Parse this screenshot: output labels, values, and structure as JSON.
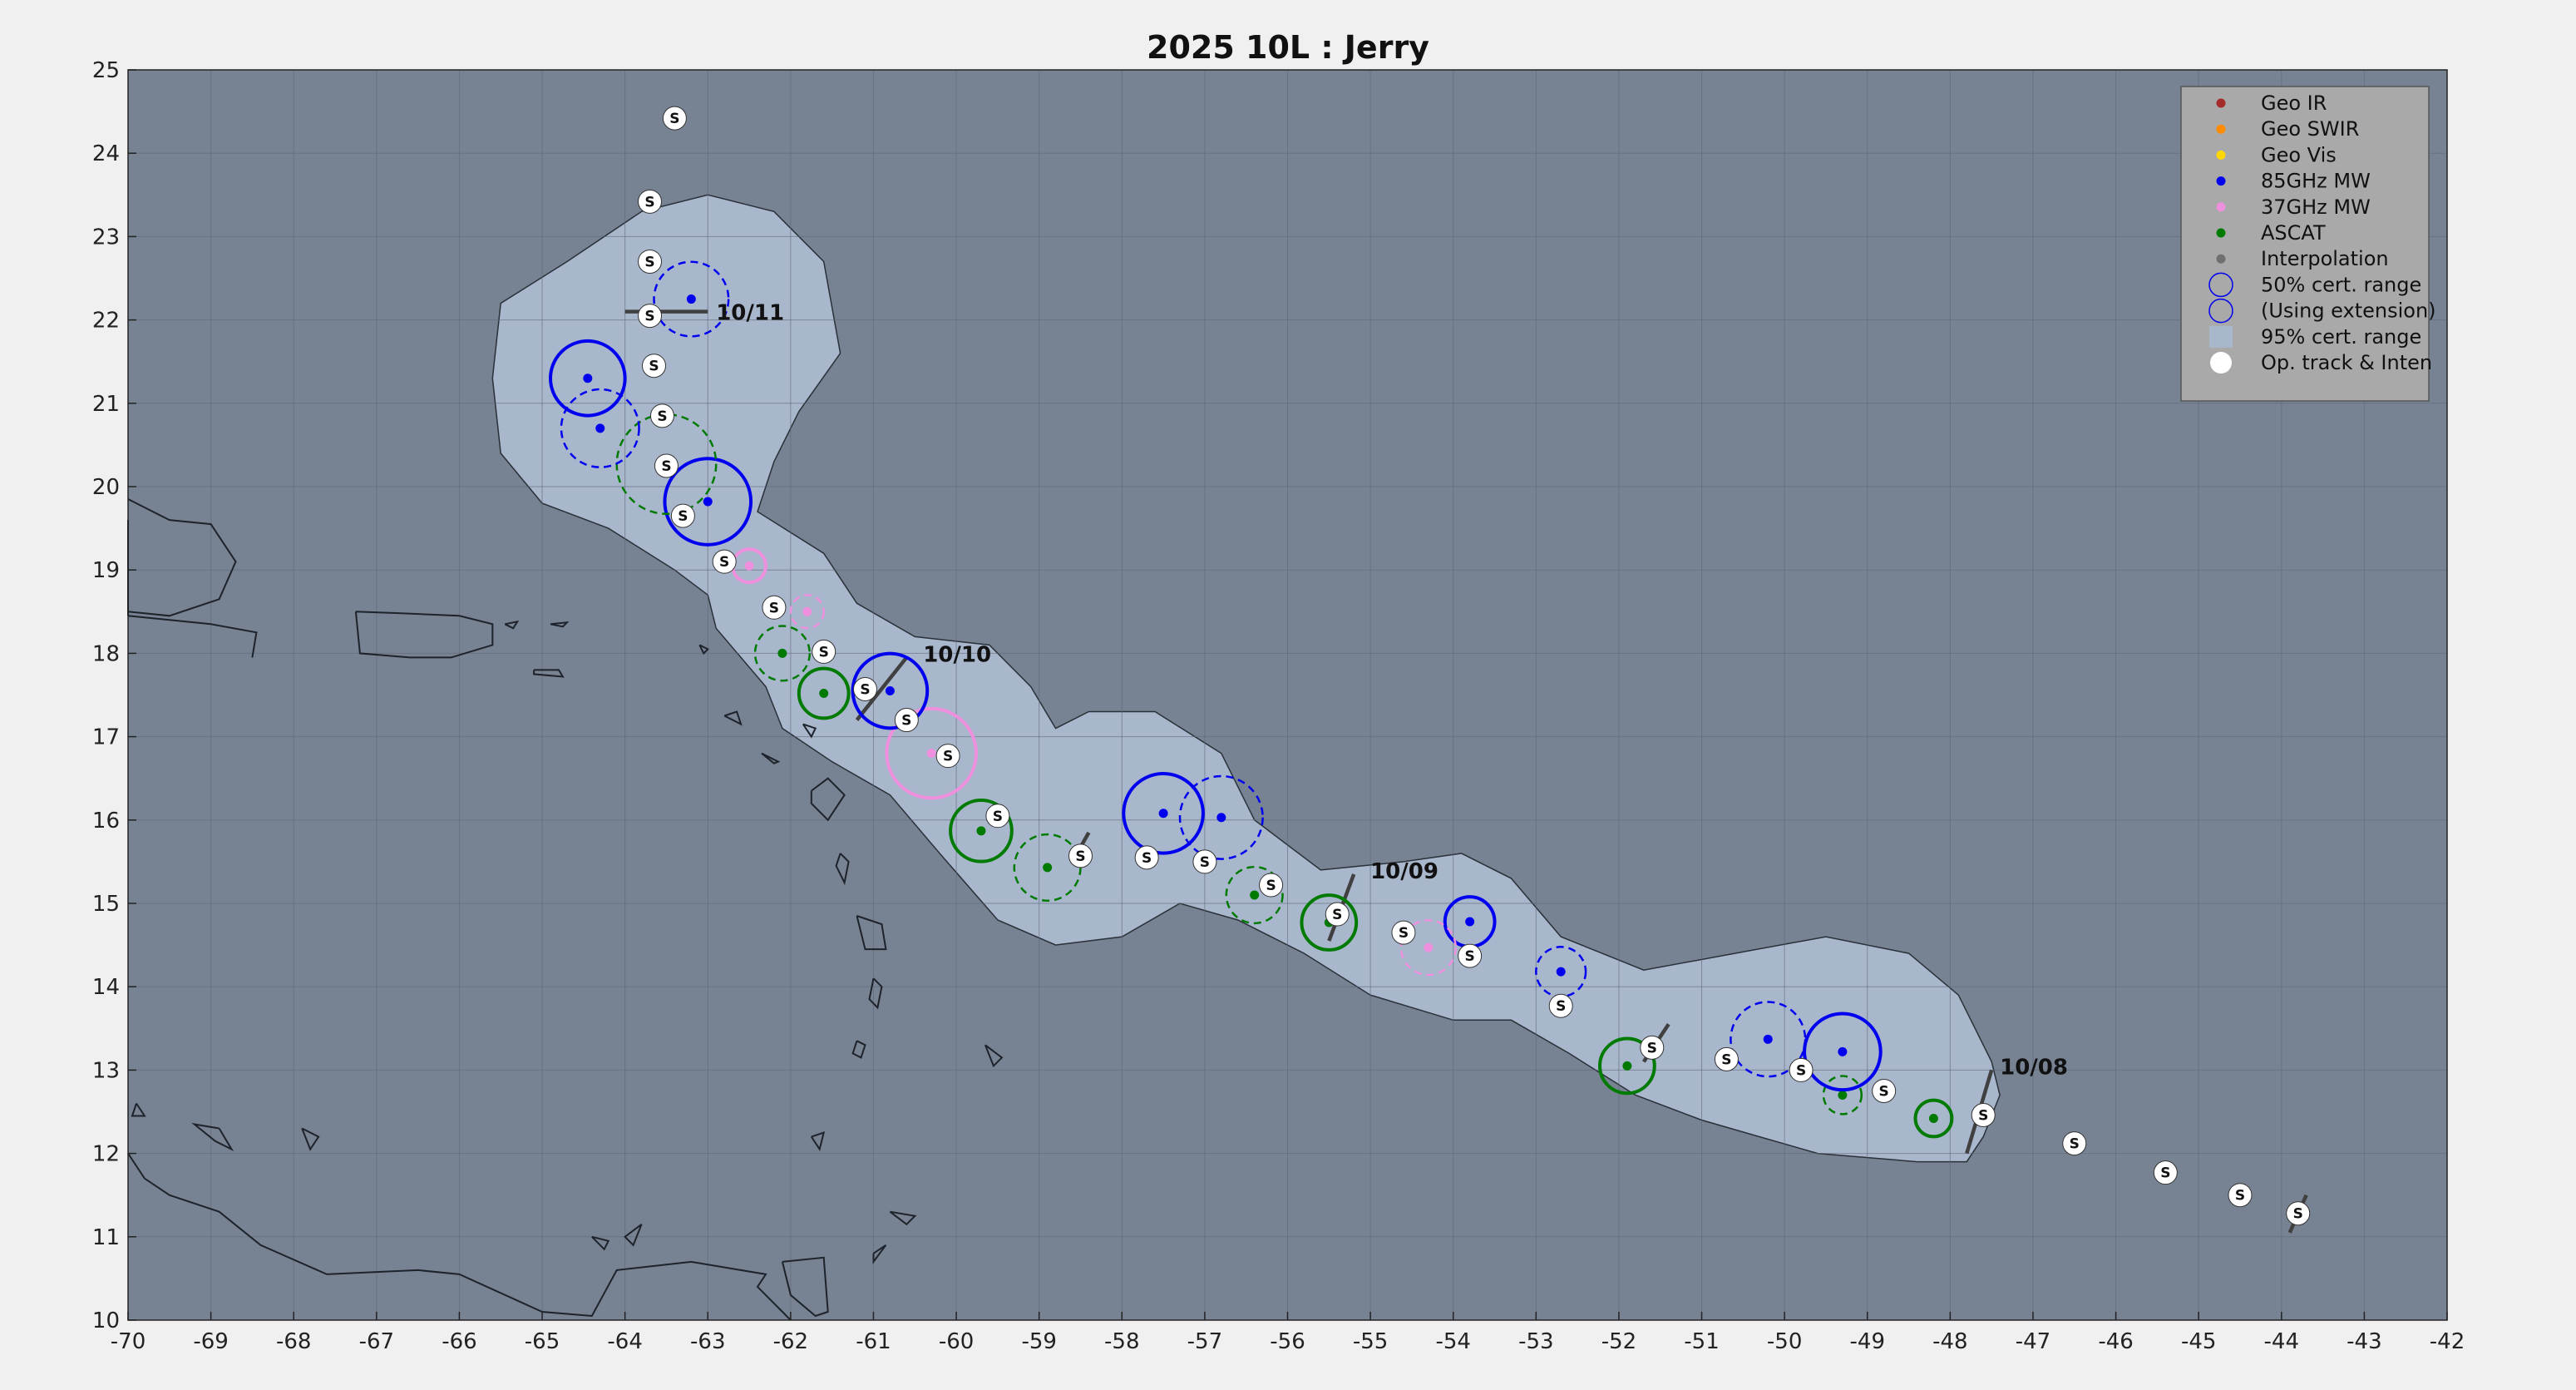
{
  "title": "2025  10L :  Jerry",
  "colors": {
    "plot_bg": "#778292",
    "cone": "#a9b7cd",
    "land_line": "#1e232b",
    "geo_ir": "#a52a2a",
    "geo_swir": "#ff8c00",
    "geo_vis": "#ffd700",
    "mw85": "#0000ee",
    "mw37": "#ee90dd",
    "ascat": "#007a00",
    "interp": "#707070",
    "oper": "#ffffff",
    "shear": "#404040",
    "legend_bg": "#a9a9a9"
  },
  "chart_data": {
    "type": "map",
    "xlim": [
      -70,
      -42
    ],
    "ylim": [
      10,
      25
    ],
    "grid": true,
    "x_ticks": [
      "-70",
      "-69",
      "-68",
      "-67",
      "-66",
      "-65",
      "-64",
      "-63",
      "-62",
      "-61",
      "-60",
      "-59",
      "-58",
      "-57",
      "-56",
      "-55",
      "-54",
      "-53",
      "-52",
      "-51",
      "-50",
      "-49",
      "-48",
      "-47",
      "-46",
      "-45",
      "-44",
      "-43",
      "-42"
    ],
    "y_ticks": [
      "10",
      "11",
      "12",
      "13",
      "14",
      "15",
      "16",
      "17",
      "18",
      "19",
      "20",
      "21",
      "22",
      "23",
      "24",
      "25"
    ],
    "legend": {
      "position": "top-right",
      "entries": [
        {
          "label": "Geo IR",
          "symbol": "dot",
          "color": "geo_ir"
        },
        {
          "label": "Geo SWIR",
          "symbol": "dot",
          "color": "geo_swir"
        },
        {
          "label": "Geo Vis",
          "symbol": "dot",
          "color": "geo_vis"
        },
        {
          "label": "85GHz MW",
          "symbol": "dot",
          "color": "mw85"
        },
        {
          "label": "37GHz MW",
          "symbol": "dot",
          "color": "mw37"
        },
        {
          "label": "ASCAT",
          "symbol": "dot",
          "color": "ascat"
        },
        {
          "label": "Interpolation",
          "symbol": "dot",
          "color": "interp"
        },
        {
          "label": "50% cert. range",
          "symbol": "circle",
          "color": "mw85"
        },
        {
          "label": "(Using extension)",
          "symbol": "circle",
          "color": "mw85"
        },
        {
          "label": "95% cert. range",
          "symbol": "rect",
          "color": "cone"
        },
        {
          "label": "Op. track & Inten",
          "symbol": "bigdot",
          "color": "oper"
        }
      ]
    },
    "cone_95": [
      [
        -47.6,
        12.2
      ],
      [
        -47.4,
        12.7
      ],
      [
        -47.5,
        13.1
      ],
      [
        -47.9,
        13.9
      ],
      [
        -48.5,
        14.4
      ],
      [
        -49.5,
        14.6
      ],
      [
        -50.6,
        14.4
      ],
      [
        -51.7,
        14.2
      ],
      [
        -52.7,
        14.6
      ],
      [
        -53.3,
        15.3
      ],
      [
        -53.9,
        15.6
      ],
      [
        -54.6,
        15.5
      ],
      [
        -55.6,
        15.4
      ],
      [
        -56.4,
        16.0
      ],
      [
        -56.8,
        16.8
      ],
      [
        -57.6,
        17.3
      ],
      [
        -58.4,
        17.3
      ],
      [
        -58.8,
        17.1
      ],
      [
        -59.1,
        17.6
      ],
      [
        -59.6,
        18.1
      ],
      [
        -60.5,
        18.2
      ],
      [
        -61.2,
        18.6
      ],
      [
        -61.6,
        19.2
      ],
      [
        -62.4,
        19.7
      ],
      [
        -62.2,
        20.3
      ],
      [
        -61.9,
        20.9
      ],
      [
        -61.4,
        21.6
      ],
      [
        -61.6,
        22.7
      ],
      [
        -62.2,
        23.3
      ],
      [
        -63.0,
        23.5
      ],
      [
        -63.8,
        23.3
      ],
      [
        -64.7,
        22.7
      ],
      [
        -65.5,
        22.2
      ],
      [
        -65.6,
        21.3
      ],
      [
        -65.5,
        20.4
      ],
      [
        -65.0,
        19.8
      ],
      [
        -64.2,
        19.5
      ],
      [
        -63.4,
        19.0
      ],
      [
        -63.0,
        18.7
      ],
      [
        -62.9,
        18.3
      ],
      [
        -62.3,
        17.6
      ],
      [
        -62.1,
        17.1
      ],
      [
        -61.5,
        16.7
      ],
      [
        -60.8,
        16.3
      ],
      [
        -60.2,
        15.6
      ],
      [
        -59.5,
        14.8
      ],
      [
        -58.8,
        14.5
      ],
      [
        -58.0,
        14.6
      ],
      [
        -57.3,
        15.0
      ],
      [
        -56.6,
        14.8
      ],
      [
        -55.8,
        14.4
      ],
      [
        -55.0,
        13.9
      ],
      [
        -54.0,
        13.6
      ],
      [
        -53.3,
        13.6
      ],
      [
        -52.6,
        13.2
      ],
      [
        -51.8,
        12.7
      ],
      [
        -51.0,
        12.4
      ],
      [
        -50.3,
        12.2
      ],
      [
        -49.6,
        12.0
      ],
      [
        -48.4,
        11.9
      ],
      [
        -47.8,
        11.9
      ]
    ],
    "fixes": [
      {
        "lon": -48.2,
        "lat": 12.42,
        "type": "ascat",
        "r": 0.22,
        "ext": false
      },
      {
        "lon": -49.3,
        "lat": 12.7,
        "type": "ascat",
        "r": 0.23,
        "ext": true
      },
      {
        "lon": -49.3,
        "lat": 13.22,
        "type": "mw85",
        "r": 0.46,
        "ext": false
      },
      {
        "lon": -50.2,
        "lat": 13.37,
        "type": "mw85",
        "r": 0.45,
        "ext": true
      },
      {
        "lon": -51.9,
        "lat": 13.05,
        "type": "ascat",
        "r": 0.33,
        "ext": false
      },
      {
        "lon": -52.7,
        "lat": 14.18,
        "type": "mw85",
        "r": 0.3,
        "ext": true
      },
      {
        "lon": -53.8,
        "lat": 14.78,
        "type": "mw85",
        "r": 0.3,
        "ext": false
      },
      {
        "lon": -54.3,
        "lat": 14.47,
        "type": "mw37",
        "r": 0.33,
        "ext": true
      },
      {
        "lon": -55.5,
        "lat": 14.77,
        "type": "ascat",
        "r": 0.33,
        "ext": false
      },
      {
        "lon": -56.4,
        "lat": 15.1,
        "type": "ascat",
        "r": 0.34,
        "ext": true
      },
      {
        "lon": -56.8,
        "lat": 16.03,
        "type": "mw85",
        "r": 0.5,
        "ext": true
      },
      {
        "lon": -57.5,
        "lat": 16.08,
        "type": "mw85",
        "r": 0.48,
        "ext": false
      },
      {
        "lon": -58.9,
        "lat": 15.43,
        "type": "ascat",
        "r": 0.4,
        "ext": true
      },
      {
        "lon": -59.7,
        "lat": 15.87,
        "type": "ascat",
        "r": 0.37,
        "ext": false
      },
      {
        "lon": -60.3,
        "lat": 16.8,
        "type": "mw37",
        "r": 0.54,
        "ext": false
      },
      {
        "lon": -60.8,
        "lat": 17.55,
        "type": "mw85",
        "r": 0.45,
        "ext": false
      },
      {
        "lon": -61.6,
        "lat": 17.52,
        "type": "ascat",
        "r": 0.3,
        "ext": false
      },
      {
        "lon": -62.1,
        "lat": 18.0,
        "type": "ascat",
        "r": 0.33,
        "ext": true
      },
      {
        "lon": -61.8,
        "lat": 18.5,
        "type": "mw37",
        "r": 0.2,
        "ext": true
      },
      {
        "lon": -62.5,
        "lat": 19.05,
        "type": "mw37",
        "r": 0.2,
        "ext": false
      },
      {
        "lon": -63.0,
        "lat": 19.82,
        "type": "mw85",
        "r": 0.52,
        "ext": false
      },
      {
        "lon": -63.5,
        "lat": 20.27,
        "type": "ascat",
        "r": 0.6,
        "ext": true
      },
      {
        "lon": -64.3,
        "lat": 20.7,
        "type": "mw85",
        "r": 0.47,
        "ext": true
      },
      {
        "lon": -64.45,
        "lat": 21.3,
        "type": "mw85",
        "r": 0.45,
        "ext": false
      },
      {
        "lon": -63.2,
        "lat": 22.25,
        "type": "mw85",
        "r": 0.45,
        "ext": true
      }
    ],
    "op_track": [
      [
        -43.8,
        11.28
      ],
      [
        -44.5,
        11.5
      ],
      [
        -45.4,
        11.77
      ],
      [
        -46.5,
        12.12
      ],
      [
        -47.6,
        12.46
      ],
      [
        -48.8,
        12.75
      ],
      [
        -49.8,
        13.0
      ],
      [
        -50.7,
        13.13
      ],
      [
        -51.6,
        13.27
      ],
      [
        -52.7,
        13.77
      ],
      [
        -53.8,
        14.37
      ],
      [
        -54.6,
        14.65
      ],
      [
        -55.4,
        14.87
      ],
      [
        -56.2,
        15.22
      ],
      [
        -57.0,
        15.5
      ],
      [
        -57.7,
        15.55
      ],
      [
        -58.5,
        15.57
      ],
      [
        -59.5,
        16.05
      ],
      [
        -60.1,
        16.77
      ],
      [
        -60.6,
        17.2
      ],
      [
        -61.1,
        17.57
      ],
      [
        -61.6,
        18.02
      ],
      [
        -62.2,
        18.55
      ],
      [
        -62.8,
        19.1
      ],
      [
        -63.3,
        19.65
      ],
      [
        -63.5,
        20.25
      ],
      [
        -63.55,
        20.85
      ],
      [
        -63.65,
        21.45
      ],
      [
        -63.7,
        22.05
      ],
      [
        -63.7,
        22.7
      ],
      [
        -63.7,
        23.42
      ],
      [
        -63.4,
        24.42
      ]
    ],
    "shear_lines": [
      [
        [
          -47.8,
          12.0
        ],
        [
          -47.5,
          13.0
        ]
      ],
      [
        [
          -55.5,
          14.55
        ],
        [
          -55.2,
          15.35
        ]
      ],
      [
        [
          -61.2,
          17.2
        ],
        [
          -60.6,
          17.95
        ]
      ],
      [
        [
          -64.0,
          22.1
        ],
        [
          -63.0,
          22.1
        ]
      ],
      [
        [
          -51.7,
          13.1
        ],
        [
          -51.4,
          13.55
        ]
      ],
      [
        [
          -58.6,
          15.5
        ],
        [
          -58.4,
          15.85
        ]
      ],
      [
        [
          -43.9,
          11.05
        ],
        [
          -43.7,
          11.5
        ]
      ]
    ],
    "date_labels": [
      {
        "text": "10/08",
        "lon": -47.4,
        "lat": 12.95
      },
      {
        "text": "10/09",
        "lon": -55.0,
        "lat": 15.3
      },
      {
        "text": "10/10",
        "lon": -60.4,
        "lat": 17.9
      },
      {
        "text": "10/11",
        "lon": -62.9,
        "lat": 22.0
      }
    ],
    "op_marker": "S",
    "coastlines": [
      [
        [
          -70,
          19.85
        ],
        [
          -69.5,
          19.6
        ],
        [
          -69.0,
          19.55
        ],
        [
          -68.7,
          19.1
        ],
        [
          -68.9,
          18.65
        ],
        [
          -69.5,
          18.45
        ],
        [
          -70,
          18.5
        ]
      ],
      [
        [
          -70,
          19.6
        ],
        [
          -70,
          18.45
        ]
      ],
      [
        [
          -70,
          18.45
        ],
        [
          -69.0,
          18.35
        ],
        [
          -68.45,
          18.25
        ],
        [
          -68.5,
          17.95
        ]
      ],
      [
        [
          -67.25,
          18.5
        ],
        [
          -66.7,
          18.48
        ],
        [
          -66.0,
          18.45
        ],
        [
          -65.6,
          18.35
        ],
        [
          -65.6,
          18.1
        ],
        [
          -66.1,
          17.95
        ],
        [
          -66.6,
          17.95
        ],
        [
          -67.2,
          18.0
        ],
        [
          -67.25,
          18.5
        ]
      ],
      [
        [
          -65.45,
          18.35
        ],
        [
          -65.3,
          18.38
        ],
        [
          -65.35,
          18.3
        ],
        [
          -65.45,
          18.35
        ]
      ],
      [
        [
          -64.9,
          18.35
        ],
        [
          -64.7,
          18.37
        ],
        [
          -64.75,
          18.32
        ],
        [
          -64.9,
          18.35
        ]
      ],
      [
        [
          -65.1,
          17.8
        ],
        [
          -64.8,
          17.8
        ],
        [
          -64.75,
          17.72
        ],
        [
          -65.1,
          17.75
        ],
        [
          -65.1,
          17.8
        ]
      ],
      [
        [
          -63.1,
          18.1
        ],
        [
          -63.0,
          18.05
        ],
        [
          -63.05,
          18.0
        ],
        [
          -63.1,
          18.1
        ]
      ],
      [
        [
          -62.8,
          17.25
        ],
        [
          -62.65,
          17.3
        ],
        [
          -62.6,
          17.15
        ],
        [
          -62.8,
          17.25
        ]
      ],
      [
        [
          -61.85,
          17.15
        ],
        [
          -61.7,
          17.1
        ],
        [
          -61.75,
          17.0
        ],
        [
          -61.85,
          17.15
        ]
      ],
      [
        [
          -62.35,
          16.8
        ],
        [
          -62.15,
          16.7
        ],
        [
          -62.2,
          16.68
        ],
        [
          -62.35,
          16.8
        ]
      ],
      [
        [
          -61.75,
          16.35
        ],
        [
          -61.55,
          16.5
        ],
        [
          -61.35,
          16.3
        ],
        [
          -61.55,
          16.0
        ],
        [
          -61.75,
          16.2
        ],
        [
          -61.75,
          16.35
        ]
      ],
      [
        [
          -61.4,
          15.6
        ],
        [
          -61.3,
          15.5
        ],
        [
          -61.35,
          15.25
        ],
        [
          -61.45,
          15.45
        ],
        [
          -61.4,
          15.6
        ]
      ],
      [
        [
          -61.2,
          14.85
        ],
        [
          -60.9,
          14.75
        ],
        [
          -60.85,
          14.45
        ],
        [
          -61.1,
          14.45
        ],
        [
          -61.2,
          14.85
        ]
      ],
      [
        [
          -61.0,
          14.1
        ],
        [
          -60.9,
          14.0
        ],
        [
          -60.95,
          13.75
        ],
        [
          -61.05,
          13.85
        ],
        [
          -61.0,
          14.1
        ]
      ],
      [
        [
          -61.2,
          13.35
        ],
        [
          -61.1,
          13.3
        ],
        [
          -61.15,
          13.15
        ],
        [
          -61.25,
          13.2
        ],
        [
          -61.2,
          13.35
        ]
      ],
      [
        [
          -59.65,
          13.3
        ],
        [
          -59.45,
          13.15
        ],
        [
          -59.55,
          13.05
        ],
        [
          -59.65,
          13.3
        ]
      ],
      [
        [
          -61.75,
          12.2
        ],
        [
          -61.6,
          12.25
        ],
        [
          -61.65,
          12.05
        ],
        [
          -61.75,
          12.2
        ]
      ],
      [
        [
          -61.0,
          10.8
        ],
        [
          -60.85,
          10.9
        ],
        [
          -61.0,
          10.7
        ],
        [
          -61.0,
          10.8
        ]
      ],
      [
        [
          -60.8,
          11.3
        ],
        [
          -60.5,
          11.25
        ],
        [
          -60.6,
          11.15
        ],
        [
          -60.8,
          11.3
        ]
      ],
      [
        [
          -62.1,
          10.7
        ],
        [
          -61.6,
          10.75
        ],
        [
          -61.55,
          10.1
        ],
        [
          -61.7,
          10.05
        ],
        [
          -62.0,
          10.3
        ],
        [
          -62.1,
          10.7
        ]
      ],
      [
        [
          -68.9,
          12.3
        ],
        [
          -68.75,
          12.05
        ],
        [
          -68.95,
          12.15
        ],
        [
          -69.2,
          12.35
        ],
        [
          -68.9,
          12.3
        ]
      ],
      [
        [
          -67.9,
          12.3
        ],
        [
          -67.7,
          12.2
        ],
        [
          -67.8,
          12.05
        ],
        [
          -67.9,
          12.3
        ]
      ],
      [
        [
          -69.9,
          12.6
        ],
        [
          -69.8,
          12.45
        ],
        [
          -69.95,
          12.45
        ],
        [
          -69.9,
          12.6
        ]
      ],
      [
        [
          -70,
          12.0
        ],
        [
          -69.8,
          11.7
        ],
        [
          -69.5,
          11.5
        ],
        [
          -68.9,
          11.3
        ],
        [
          -68.4,
          10.9
        ],
        [
          -67.6,
          10.55
        ],
        [
          -66.5,
          10.6
        ],
        [
          -66.0,
          10.55
        ],
        [
          -65.0,
          10.1
        ],
        [
          -64.4,
          10.05
        ],
        [
          -64.1,
          10.6
        ],
        [
          -63.2,
          10.7
        ],
        [
          -62.3,
          10.55
        ],
        [
          -62.4,
          10.4
        ],
        [
          -62.0,
          10.0
        ]
      ],
      [
        [
          -63.8,
          11.15
        ],
        [
          -64.0,
          11.0
        ],
        [
          -63.9,
          10.9
        ],
        [
          -63.8,
          11.15
        ]
      ],
      [
        [
          -64.4,
          11.0
        ],
        [
          -64.2,
          10.95
        ],
        [
          -64.25,
          10.85
        ],
        [
          -64.4,
          11.0
        ]
      ]
    ]
  }
}
